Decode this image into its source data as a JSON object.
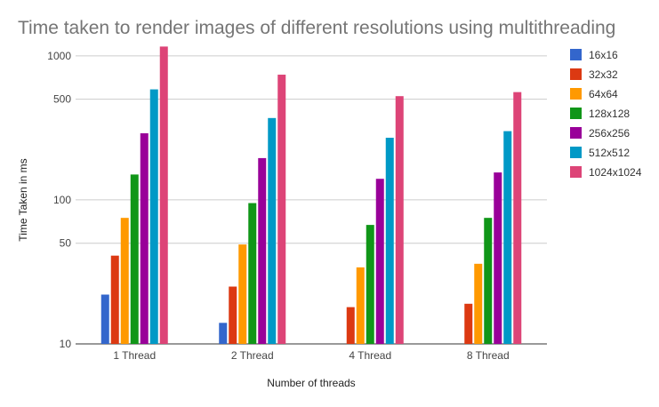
{
  "chart_data": {
    "type": "bar",
    "title": "Time taken to render images of different resolutions using multithreading",
    "xlabel": "Number of threads",
    "ylabel": "Time Taken in ms",
    "yscale": "log",
    "ylim": [
      10,
      1200
    ],
    "yticks": [
      10,
      50,
      100,
      500,
      1000
    ],
    "grid": true,
    "legend_position": "right",
    "categories": [
      "1 Thread",
      "2 Thread",
      "4 Thread",
      "8 Thread"
    ],
    "series": [
      {
        "name": "16x16",
        "color": "#3366cc",
        "values": [
          22,
          14,
          null,
          null
        ]
      },
      {
        "name": "32x32",
        "color": "#dc3912",
        "values": [
          41,
          25,
          18,
          19
        ]
      },
      {
        "name": "64x64",
        "color": "#ff9900",
        "values": [
          75,
          49,
          34,
          36
        ]
      },
      {
        "name": "128x128",
        "color": "#109618",
        "values": [
          150,
          95,
          67,
          75
        ]
      },
      {
        "name": "256x256",
        "color": "#990099",
        "values": [
          290,
          195,
          140,
          155
        ]
      },
      {
        "name": "512x512",
        "color": "#0099c6",
        "values": [
          585,
          370,
          270,
          300
        ]
      },
      {
        "name": "1024x1024",
        "color": "#dd4477",
        "values": [
          1160,
          740,
          525,
          560
        ]
      }
    ]
  }
}
